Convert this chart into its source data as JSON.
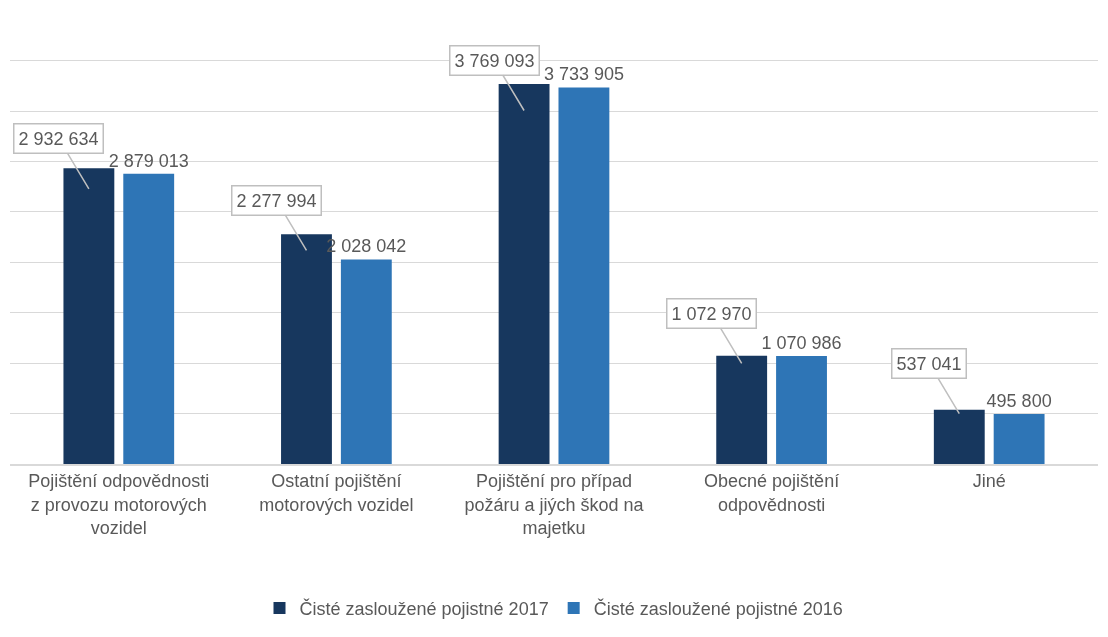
{
  "chart_data": {
    "type": "bar",
    "categories": [
      "Pojištění odpovědnosti z provozu motorových vozidel",
      "Ostatní pojištění motorových vozidel",
      "Pojištění pro případ požáru a jiých škod na majetku",
      "Obecné pojištění odpovědnosti",
      "Jiné"
    ],
    "series": [
      {
        "name": "Čisté zasloužené pojistné 2017",
        "color": "#17375e",
        "values": [
          2932634,
          2277994,
          3769093,
          1072970,
          537041
        ],
        "value_labels": [
          "2 932 634",
          "2 277 994",
          "3 769 093",
          "1 072 970",
          "537 041"
        ]
      },
      {
        "name": "Čisté zasloužené pojistné 2016",
        "color": "#2e75b6",
        "values": [
          2879013,
          2028042,
          3733905,
          1070986,
          495800
        ],
        "value_labels": [
          "2 879 013",
          "2 028 042",
          "3 733 905",
          "1 070 986",
          "495 800"
        ]
      }
    ],
    "tick_labels": "x",
    "grid": "y",
    "legend": "bottom"
  }
}
